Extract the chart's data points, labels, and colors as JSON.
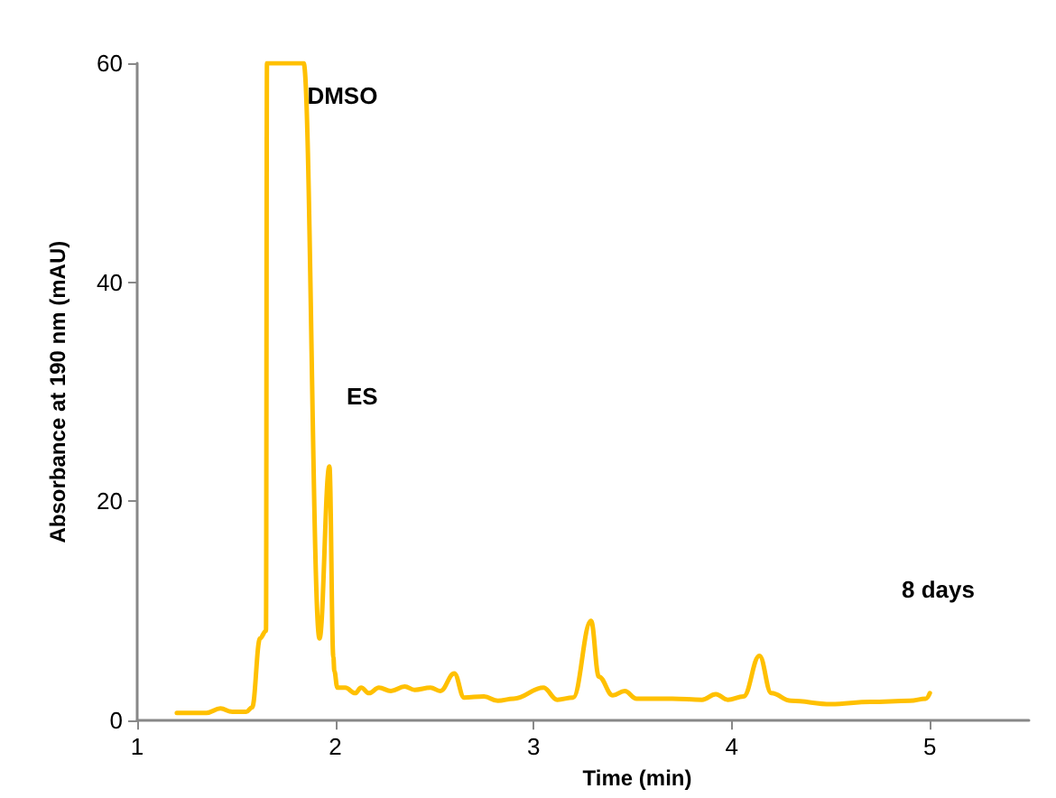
{
  "chart_data": {
    "type": "line",
    "xlabel": "Time (min)",
    "ylabel": "Absorbance at 190 nm (mAU)",
    "x": [
      1.2,
      1.35,
      1.42,
      1.48,
      1.55,
      1.58,
      1.62,
      1.65,
      1.655,
      1.84,
      1.92,
      1.97,
      1.99,
      1.995,
      2.01,
      2.05,
      2.1,
      2.13,
      2.17,
      2.22,
      2.28,
      2.35,
      2.4,
      2.48,
      2.53,
      2.6,
      2.65,
      2.75,
      2.82,
      2.9,
      3.05,
      3.12,
      3.2,
      3.29,
      3.33,
      3.4,
      3.46,
      3.52,
      3.7,
      3.85,
      3.92,
      3.98,
      4.06,
      4.14,
      4.2,
      4.3,
      4.5,
      4.7,
      4.9,
      4.98,
      5.0
    ],
    "series": [
      {
        "color": "#ffc000",
        "values": [
          0.7,
          0.7,
          1.1,
          0.8,
          0.8,
          1.2,
          7.5,
          8.2,
          60,
          60,
          7.5,
          23.2,
          5.8,
          4.5,
          3,
          3,
          2.5,
          3,
          2.5,
          3,
          2.7,
          3.1,
          2.8,
          3,
          2.7,
          4.3,
          2.1,
          2.2,
          1.8,
          2,
          3.0,
          1.9,
          2.1,
          9.1,
          4,
          2.3,
          2.7,
          2.0,
          2,
          1.9,
          2.4,
          1.9,
          2.2,
          5.9,
          2.5,
          1.8,
          1.5,
          1.7,
          1.8,
          2.0,
          2.5
        ]
      }
    ],
    "xlim": [
      1,
      5.5
    ],
    "xticks": [
      1,
      2,
      3,
      4,
      5
    ],
    "ylim": [
      0,
      60
    ],
    "yticks": [
      0,
      20,
      40,
      60
    ],
    "grid": false,
    "marker": "none",
    "line_style": "solid",
    "annotations": [
      {
        "text": "DMSO",
        "x": 1.84,
        "y": 57
      },
      "ES",
      "8 days"
    ]
  }
}
